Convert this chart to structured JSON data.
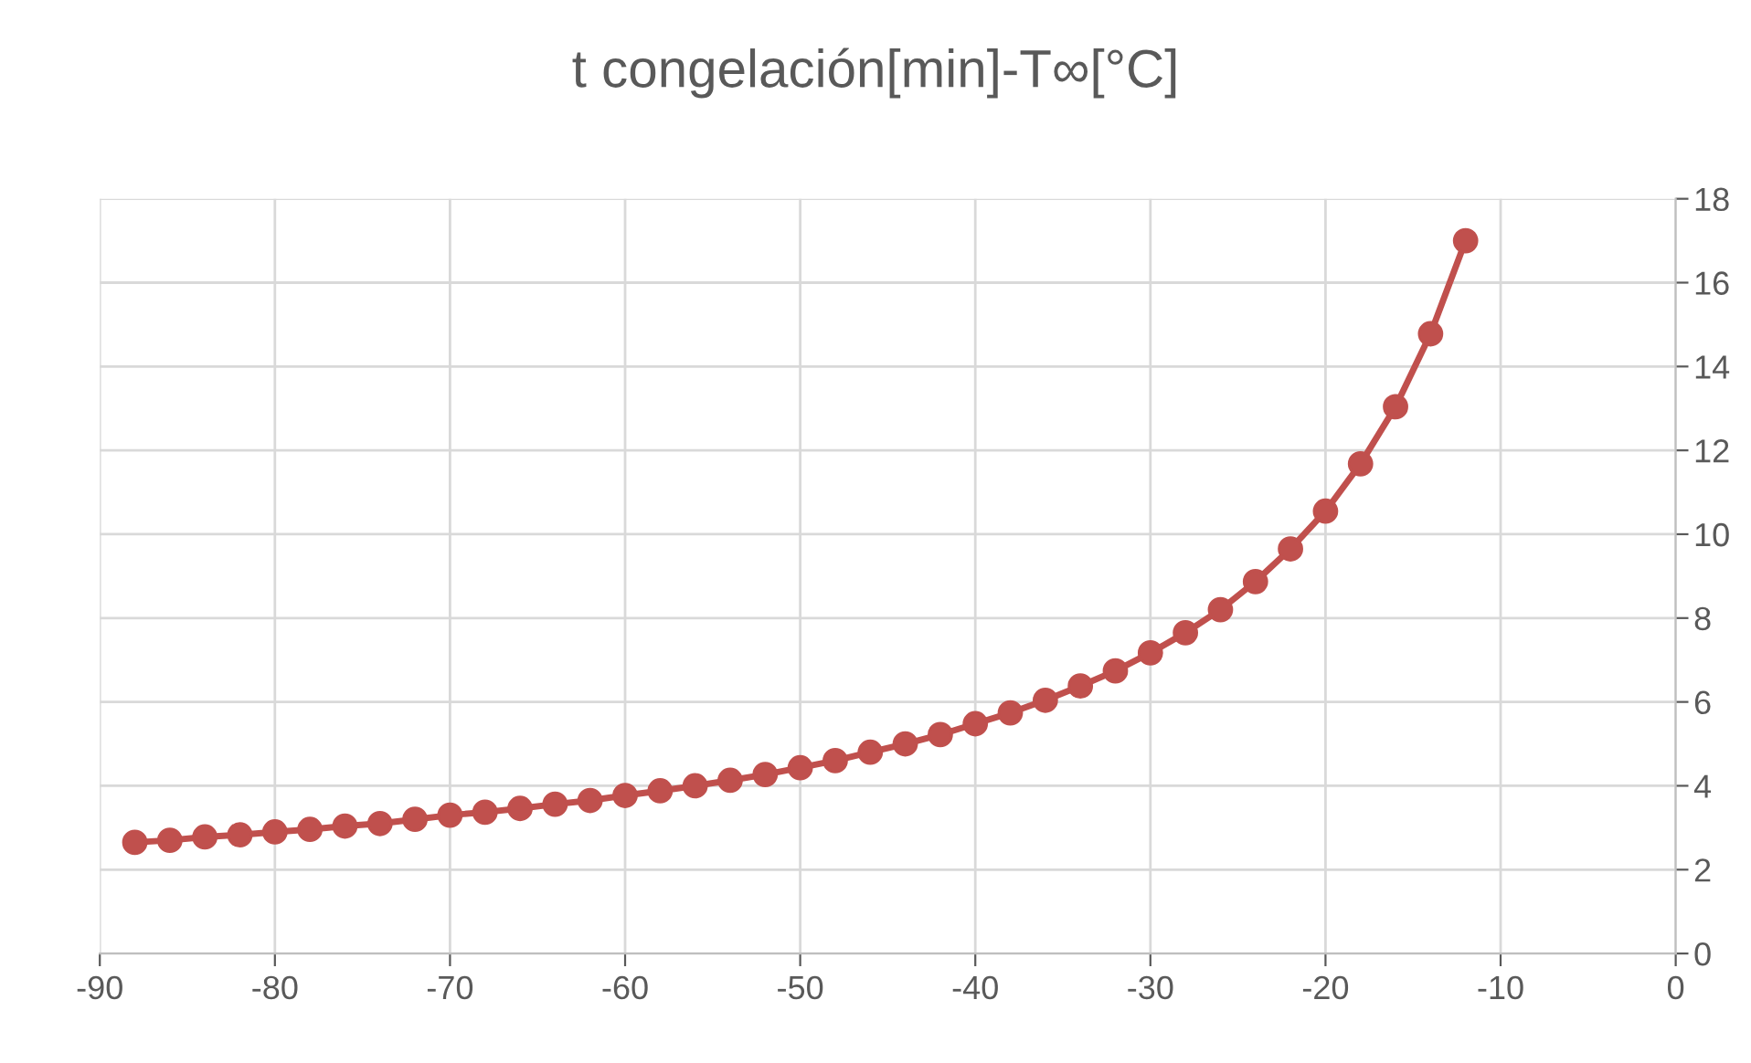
{
  "chart_data": {
    "type": "line",
    "title": "t congelación[min]-T∞[°C]",
    "x": [
      -88,
      -86,
      -84,
      -82,
      -80,
      -78,
      -76,
      -74,
      -72,
      -70,
      -68,
      -66,
      -64,
      -62,
      -60,
      -58,
      -56,
      -54,
      -52,
      -50,
      -48,
      -46,
      -44,
      -42,
      -40,
      -38,
      -36,
      -34,
      -32,
      -30,
      -28,
      -26,
      -24,
      -22,
      -20,
      -18,
      -16,
      -14,
      -12
    ],
    "series": [
      {
        "color": "#c0504d",
        "values": [
          2.65,
          2.7,
          2.78,
          2.83,
          2.9,
          2.96,
          3.04,
          3.1,
          3.2,
          3.3,
          3.37,
          3.46,
          3.56,
          3.65,
          3.77,
          3.88,
          4.0,
          4.13,
          4.27,
          4.43,
          4.6,
          4.8,
          5.0,
          5.22,
          5.48,
          5.74,
          6.04,
          6.38,
          6.74,
          7.17,
          7.65,
          8.2,
          8.87,
          9.65,
          10.55,
          11.68,
          13.04,
          14.78,
          17.0
        ]
      }
    ],
    "xlim": [
      -90,
      0
    ],
    "xticks": [
      -90,
      -80,
      -70,
      -60,
      -50,
      -40,
      -30,
      -20,
      -10,
      0
    ],
    "ylim": [
      0,
      18
    ],
    "yticks": [
      0,
      2,
      4,
      6,
      8,
      10,
      12,
      14,
      16,
      18
    ],
    "grid": true,
    "marker": "circle",
    "line_style": "solid",
    "legend": false
  }
}
